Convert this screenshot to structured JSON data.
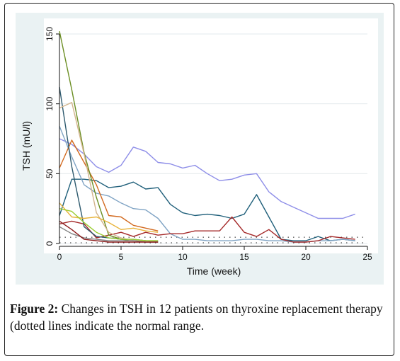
{
  "chart_data": {
    "type": "line",
    "xlabel": "Time (week)",
    "ylabel": "TSH (mU/l)",
    "xlim": [
      0,
      25
    ],
    "ylim": [
      0,
      150
    ],
    "x_ticks": [
      0,
      5,
      10,
      15,
      20,
      25
    ],
    "y_ticks": [
      0,
      50,
      100,
      150
    ],
    "grid": "horizontal",
    "normal_range_lines": [
      0.5,
      4.5
    ],
    "series": [
      {
        "color": "#8e8ee8",
        "points": [
          [
            0,
            75
          ],
          [
            1,
            71
          ],
          [
            2,
            64
          ],
          [
            3,
            55
          ],
          [
            4,
            51
          ],
          [
            5,
            56
          ],
          [
            6,
            69
          ],
          [
            7,
            66
          ],
          [
            8,
            58
          ],
          [
            9,
            57
          ],
          [
            10,
            54
          ],
          [
            11,
            56
          ],
          [
            12,
            50
          ],
          [
            13,
            45
          ],
          [
            14,
            46
          ],
          [
            15,
            49
          ],
          [
            16,
            50
          ],
          [
            17,
            37
          ],
          [
            18,
            30
          ],
          [
            19,
            26
          ],
          [
            20,
            22
          ],
          [
            21,
            18
          ],
          [
            22,
            18
          ],
          [
            23,
            18
          ],
          [
            24,
            21
          ]
        ]
      },
      {
        "color": "#1f5f7a",
        "points": [
          [
            0,
            20
          ],
          [
            1,
            46
          ],
          [
            2,
            46
          ],
          [
            3,
            45
          ],
          [
            4,
            40
          ],
          [
            5,
            41
          ],
          [
            6,
            44
          ],
          [
            7,
            39
          ],
          [
            8,
            40
          ],
          [
            9,
            28
          ],
          [
            10,
            22
          ],
          [
            11,
            20
          ],
          [
            12,
            21
          ],
          [
            13,
            20
          ],
          [
            14,
            18
          ],
          [
            15,
            21
          ],
          [
            16,
            35
          ],
          [
            17,
            19
          ],
          [
            18,
            3
          ],
          [
            19,
            2
          ],
          [
            20,
            2
          ],
          [
            21,
            5
          ],
          [
            22,
            2
          ],
          [
            23,
            3
          ],
          [
            24,
            2
          ]
        ]
      },
      {
        "color": "#7fa3c4",
        "points": [
          [
            0,
            84
          ],
          [
            1,
            62
          ],
          [
            2,
            42
          ],
          [
            3,
            36
          ],
          [
            4,
            34
          ],
          [
            5,
            29
          ],
          [
            6,
            25
          ],
          [
            7,
            24
          ],
          [
            8,
            18
          ],
          [
            9,
            7
          ],
          [
            10,
            3
          ],
          [
            11,
            3
          ],
          [
            12,
            2
          ],
          [
            13,
            2
          ],
          [
            14,
            2
          ],
          [
            15,
            3
          ],
          [
            16,
            3
          ],
          [
            17,
            2
          ],
          [
            18,
            2
          ],
          [
            19,
            1
          ],
          [
            20,
            1
          ],
          [
            21,
            2
          ],
          [
            22,
            2
          ],
          [
            23,
            3
          ],
          [
            24,
            2
          ]
        ]
      },
      {
        "color": "#a52a2a",
        "points": [
          [
            0,
            14
          ],
          [
            1,
            16
          ],
          [
            2,
            14
          ],
          [
            3,
            4
          ],
          [
            4,
            6
          ],
          [
            5,
            8
          ],
          [
            6,
            5
          ],
          [
            7,
            8
          ],
          [
            8,
            6
          ],
          [
            9,
            7
          ],
          [
            10,
            7
          ],
          [
            11,
            9
          ],
          [
            12,
            9
          ],
          [
            13,
            9
          ],
          [
            14,
            19
          ],
          [
            15,
            8
          ],
          [
            16,
            5
          ],
          [
            17,
            10
          ],
          [
            18,
            3
          ],
          [
            19,
            1
          ],
          [
            20,
            1
          ],
          [
            21,
            2
          ],
          [
            22,
            5
          ],
          [
            23,
            4
          ],
          [
            24,
            3
          ]
        ]
      },
      {
        "color": "#d2691e",
        "points": [
          [
            0,
            54
          ],
          [
            1,
            74
          ],
          [
            2,
            58
          ],
          [
            3,
            42
          ],
          [
            4,
            20
          ],
          [
            5,
            19
          ],
          [
            6,
            13
          ],
          [
            7,
            11
          ],
          [
            8,
            9
          ]
        ]
      },
      {
        "color": "#6b8e23",
        "points": [
          [
            0,
            152
          ],
          [
            1,
            110
          ],
          [
            2,
            65
          ],
          [
            3,
            33
          ],
          [
            4,
            6
          ],
          [
            5,
            3
          ],
          [
            6,
            2
          ],
          [
            7,
            2
          ],
          [
            8,
            2
          ]
        ]
      },
      {
        "color": "#2e5a6e",
        "points": [
          [
            0,
            112
          ],
          [
            1,
            55
          ],
          [
            2,
            12
          ],
          [
            3,
            5
          ],
          [
            4,
            4
          ],
          [
            5,
            3
          ],
          [
            6,
            3
          ],
          [
            7,
            2
          ],
          [
            8,
            1
          ]
        ]
      },
      {
        "color": "#d2b48c",
        "points": [
          [
            0,
            97
          ],
          [
            1,
            101
          ],
          [
            2,
            64
          ],
          [
            3,
            22
          ],
          [
            4,
            8
          ],
          [
            5,
            4
          ],
          [
            6,
            2
          ],
          [
            7,
            2
          ],
          [
            8,
            1
          ]
        ]
      },
      {
        "color": "#e8b339",
        "points": [
          [
            0,
            29
          ],
          [
            1,
            19
          ],
          [
            2,
            18
          ],
          [
            3,
            19
          ],
          [
            4,
            15
          ],
          [
            5,
            10
          ],
          [
            6,
            11
          ],
          [
            7,
            9
          ],
          [
            8,
            8
          ]
        ]
      },
      {
        "color": "#808080",
        "points": [
          [
            0,
            12
          ],
          [
            1,
            7
          ],
          [
            2,
            4
          ],
          [
            3,
            3
          ],
          [
            4,
            2
          ],
          [
            5,
            2
          ],
          [
            6,
            2
          ],
          [
            7,
            1
          ],
          [
            8,
            1
          ]
        ]
      },
      {
        "color": "#9acd32",
        "points": [
          [
            0,
            25
          ],
          [
            1,
            23
          ],
          [
            2,
            15
          ],
          [
            3,
            8
          ],
          [
            4,
            4
          ],
          [
            5,
            3
          ],
          [
            6,
            3
          ],
          [
            7,
            2
          ],
          [
            8,
            2
          ]
        ]
      },
      {
        "color": "#8b1a1a",
        "points": [
          [
            0,
            16
          ],
          [
            1,
            10
          ],
          [
            2,
            3
          ],
          [
            3,
            2
          ],
          [
            4,
            1
          ],
          [
            5,
            1
          ],
          [
            6,
            1
          ],
          [
            7,
            1
          ],
          [
            8,
            1
          ]
        ]
      }
    ]
  },
  "caption": {
    "label": "Figure 2:",
    "text": " Changes in TSH in 12 patients on thyroxine replacement therapy (dotted lines indicate the normal range."
  }
}
